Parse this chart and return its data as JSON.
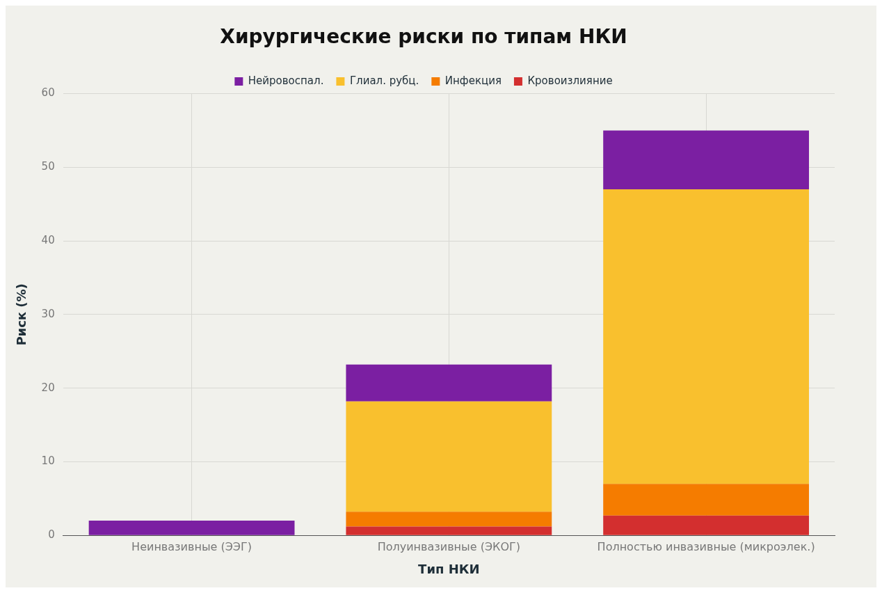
{
  "chart_data": {
    "type": "bar",
    "title": "Хирургические риски по типам НКИ",
    "xlabel": "Тип НКИ",
    "ylabel": "Риск (%)",
    "categories": [
      "Неинвазивные (ЭЭГ)",
      "Полуинвазивные (ЭКОГ)",
      "Полностью инвазивные (микроэлек.)"
    ],
    "series": [
      {
        "name": "Кровоизлияние",
        "color": "#d32f2f",
        "values": [
          0,
          1.2,
          2.7
        ]
      },
      {
        "name": "Инфекция",
        "color": "#f57c00",
        "values": [
          0,
          2,
          4.3
        ]
      },
      {
        "name": "Глиал. рубц.",
        "color": "#f9c02e",
        "values": [
          0,
          15,
          40
        ]
      },
      {
        "name": "Нейровоспал.",
        "color": "#7b1fa2",
        "values": [
          2,
          5,
          8
        ]
      }
    ],
    "stacked": true,
    "ylim": [
      0,
      60
    ],
    "yticks": [
      0,
      10,
      20,
      30,
      40,
      50,
      60
    ],
    "grid": true,
    "legend": "top"
  }
}
